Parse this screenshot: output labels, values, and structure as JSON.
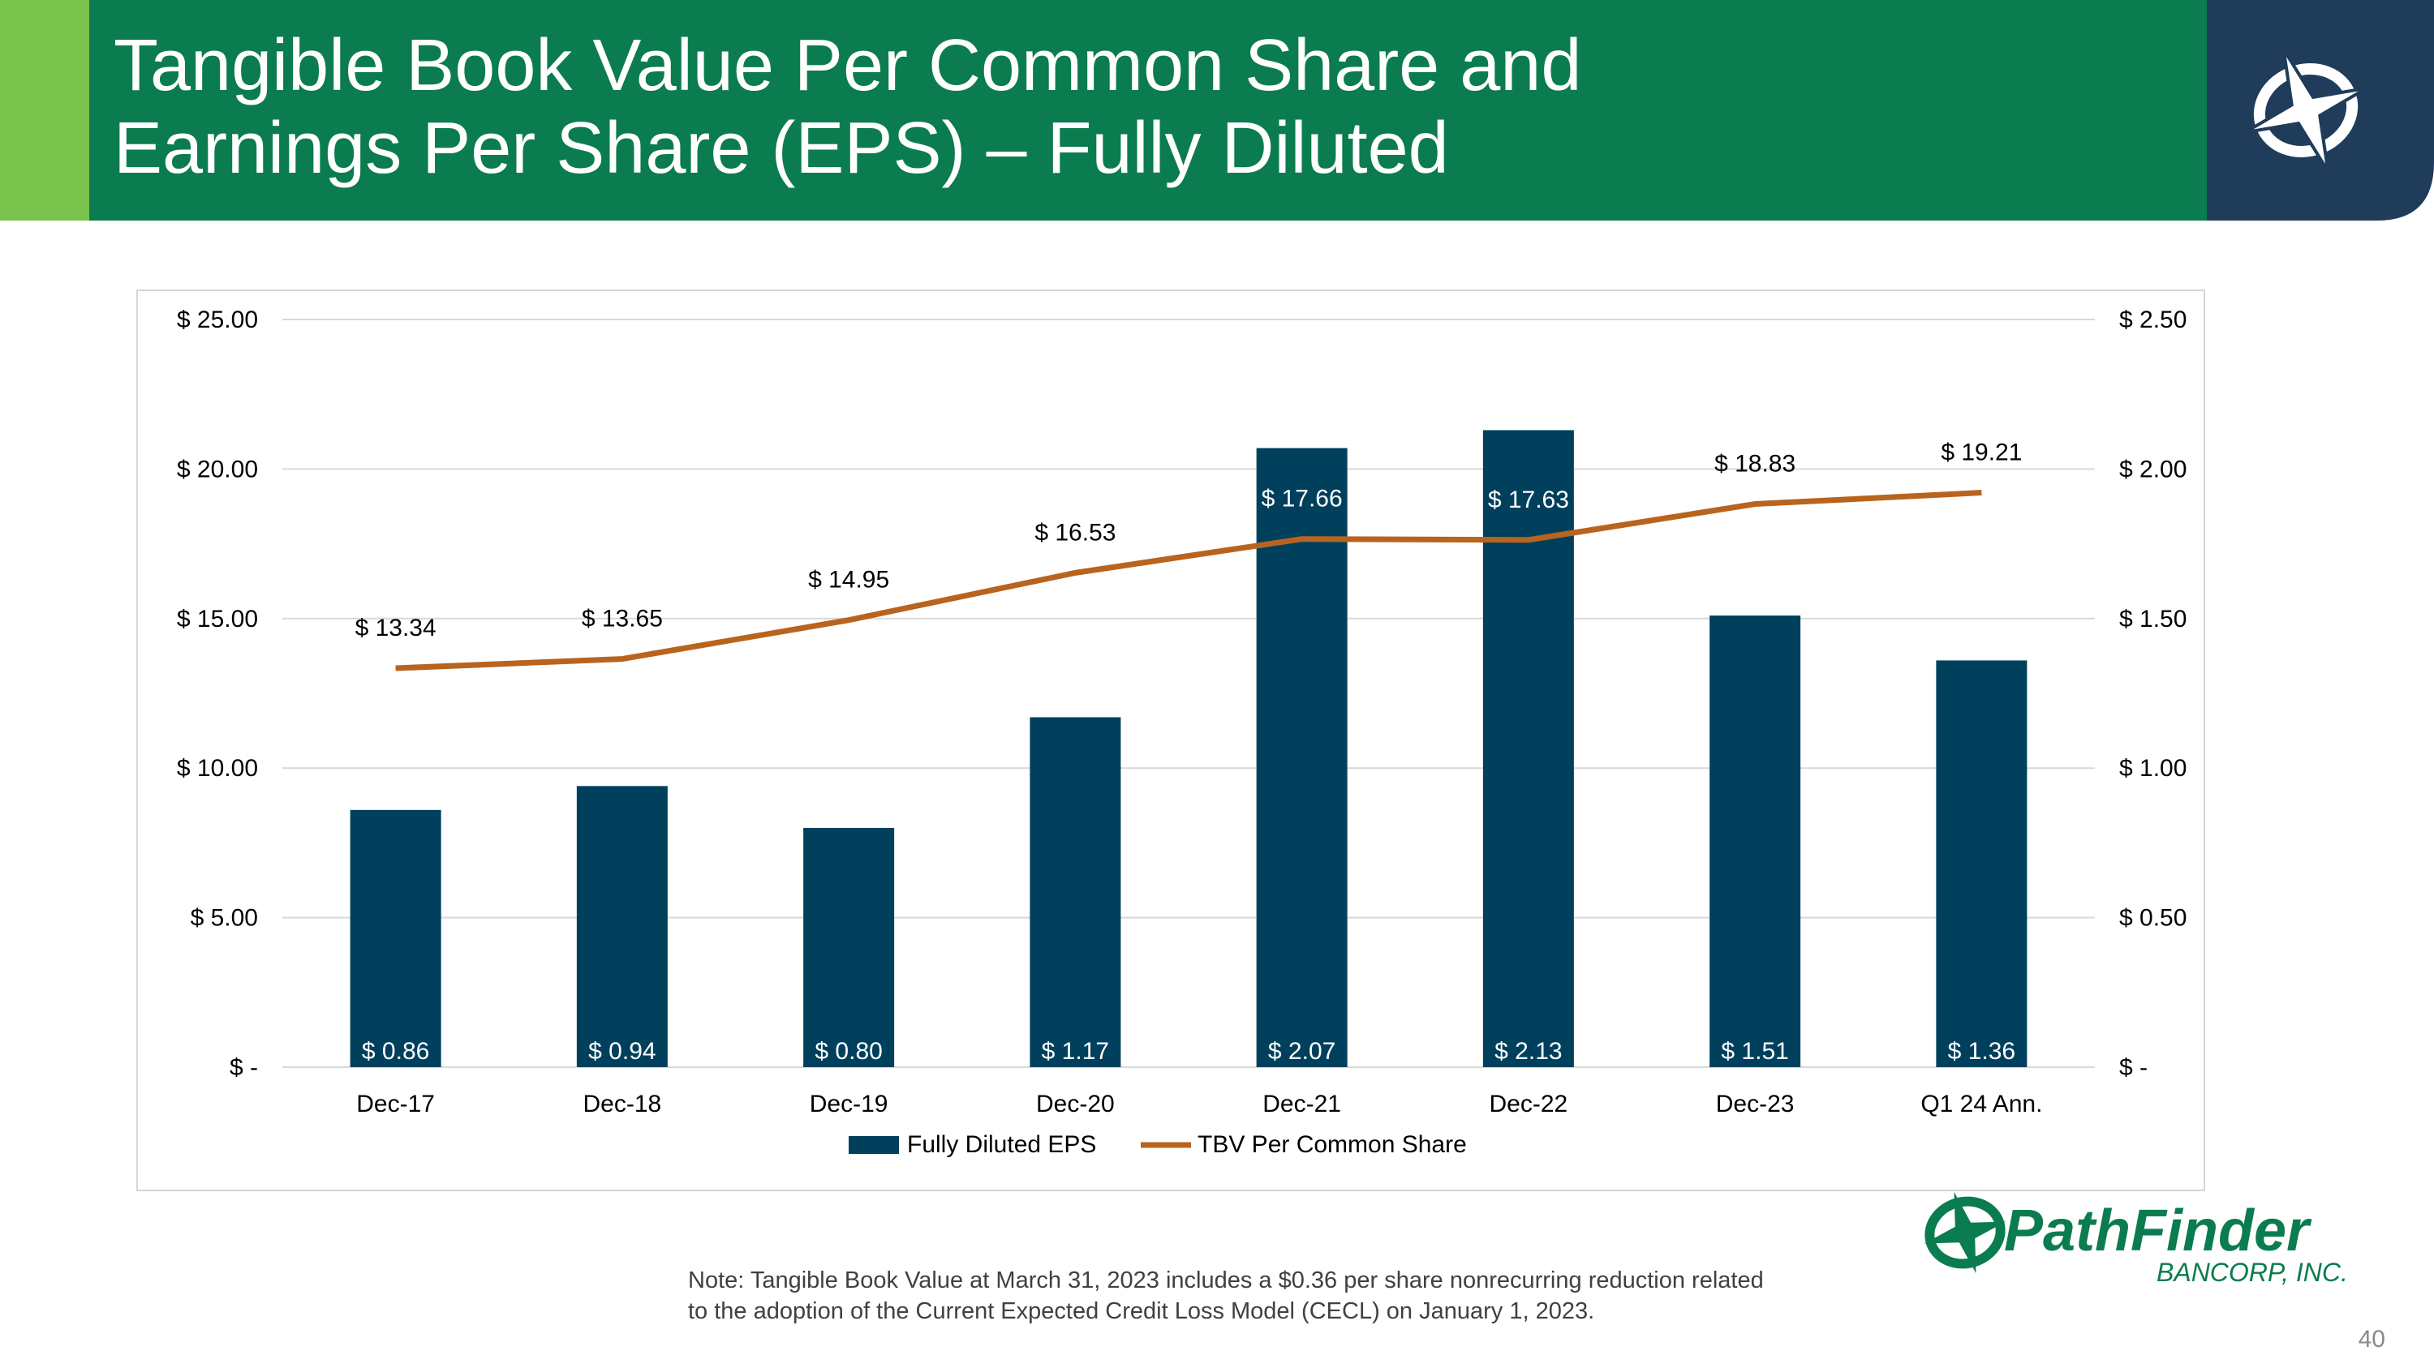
{
  "slide": {
    "title_line1": "Tangible Book Value Per Common Share and",
    "title_line2": "Earnings Per Share (EPS) – Fully Diluted",
    "note_line1": "Note: Tangible Book Value at March 31, 2023 includes a $0.36 per share nonrecurring reduction related",
    "note_line2": "to the adoption of the Current Expected Credit Loss Model (CECL) on January 1, 2023.",
    "page_number": "40",
    "brand_name": "PathFinder",
    "brand_sub": "BANCORP, INC.",
    "colors": {
      "header_green": "#0b7c4f",
      "accent_green": "#79c34c",
      "logo_navy": "#1f3d5b",
      "bar_navy": "#00405d",
      "line_orange": "#b8641f"
    }
  },
  "chart_data": {
    "type": "bar",
    "categories": [
      "Dec-17",
      "Dec-18",
      "Dec-19",
      "Dec-20",
      "Dec-21",
      "Dec-22",
      "Dec-23",
      "Q1 24 Ann."
    ],
    "series": [
      {
        "name": "Fully Diluted EPS",
        "type": "bar",
        "axis": "right",
        "values": [
          0.86,
          0.94,
          0.8,
          1.17,
          2.07,
          2.13,
          1.51,
          1.36
        ],
        "labels": [
          "$ 0.86",
          "$ 0.94",
          "$ 0.80",
          "$ 1.17",
          "$ 2.07",
          "$ 2.13",
          "$ 1.51",
          "$ 1.36"
        ],
        "color": "#00405d"
      },
      {
        "name": "TBV Per Common Share",
        "type": "line",
        "axis": "left",
        "values": [
          13.34,
          13.65,
          14.95,
          16.53,
          17.66,
          17.63,
          18.83,
          19.21
        ],
        "labels": [
          "$ 13.34",
          "$ 13.65",
          "$ 14.95",
          "$ 16.53",
          "$ 17.66",
          "$ 17.63",
          "$ 18.83",
          "$ 19.21"
        ],
        "color": "#b8641f"
      }
    ],
    "y_left": {
      "min": 0,
      "max": 25,
      "ticks": [
        0,
        5,
        10,
        15,
        20,
        25
      ],
      "tick_labels": [
        "$ -",
        "$ 5.00",
        "$ 10.00",
        "$ 15.00",
        "$ 20.00",
        "$ 25.00"
      ]
    },
    "y_right": {
      "min": 0,
      "max": 2.5,
      "ticks": [
        0,
        0.5,
        1.0,
        1.5,
        2.0,
        2.5
      ],
      "tick_labels": [
        "$ -",
        "$ 0.50",
        "$ 1.00",
        "$ 1.50",
        "$ 2.00",
        "$ 2.50"
      ]
    },
    "grid": true,
    "legend": "bottom"
  }
}
